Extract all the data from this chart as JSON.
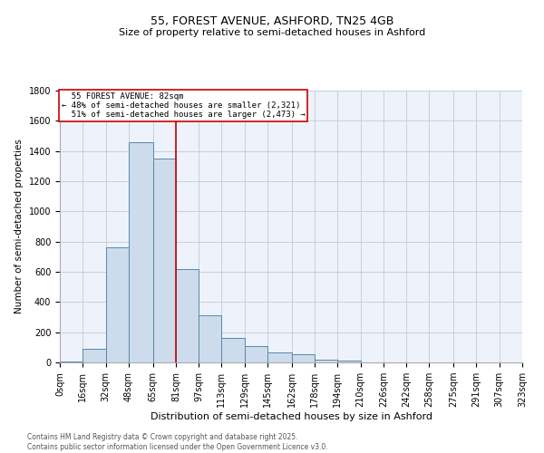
{
  "title_line1": "55, FOREST AVENUE, ASHFORD, TN25 4GB",
  "title_line2": "Size of property relative to semi-detached houses in Ashford",
  "xlabel": "Distribution of semi-detached houses by size in Ashford",
  "ylabel": "Number of semi-detached properties",
  "footnote": "Contains HM Land Registry data © Crown copyright and database right 2025.\nContains public sector information licensed under the Open Government Licence v3.0.",
  "property_label": "55 FOREST AVENUE: 82sqm",
  "pct_smaller": 48,
  "count_smaller": 2321,
  "pct_larger": 51,
  "count_larger": 2473,
  "bin_edges": [
    0,
    16,
    32,
    48,
    65,
    81,
    97,
    113,
    129,
    145,
    162,
    178,
    194,
    210,
    226,
    242,
    258,
    275,
    291,
    307,
    323
  ],
  "bin_labels": [
    "0sqm",
    "16sqm",
    "32sqm",
    "48sqm",
    "65sqm",
    "81sqm",
    "97sqm",
    "113sqm",
    "129sqm",
    "145sqm",
    "162sqm",
    "178sqm",
    "194sqm",
    "210sqm",
    "226sqm",
    "242sqm",
    "258sqm",
    "275sqm",
    "291sqm",
    "307sqm",
    "323sqm"
  ],
  "counts": [
    5,
    90,
    760,
    1460,
    1350,
    620,
    310,
    165,
    110,
    65,
    55,
    20,
    10,
    0,
    0,
    0,
    0,
    0,
    0,
    0
  ],
  "bar_color": "#ccdcec",
  "bar_edge_color": "#5588aa",
  "vline_color": "#cc0000",
  "vline_x": 81,
  "annotation_box_color": "#cc0000",
  "grid_color": "#bbccdd",
  "background_color": "#eef2fa",
  "ylim": [
    0,
    1800
  ],
  "yticks": [
    0,
    200,
    400,
    600,
    800,
    1000,
    1200,
    1400,
    1600,
    1800
  ],
  "title_fontsize": 9,
  "subtitle_fontsize": 8,
  "ylabel_fontsize": 7.5,
  "xlabel_fontsize": 8,
  "tick_fontsize": 7,
  "footnote_fontsize": 5.5
}
